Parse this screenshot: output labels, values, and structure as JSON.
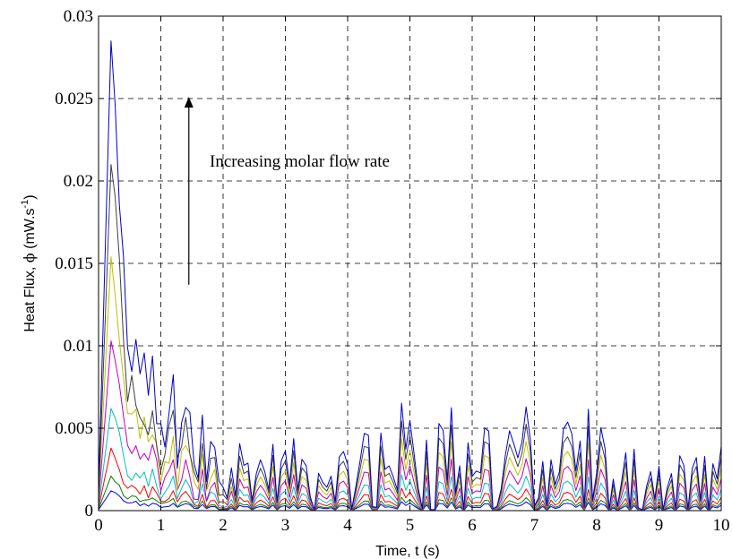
{
  "chart_data": {
    "type": "line",
    "xlabel": "Time, t (s)",
    "ylabel_main": "Heat Flux, ",
    "ylabel_symbol": "ϕ",
    "ylabel_unit": " (mW.s",
    "ylabel_exp": "-1",
    "ylabel_close": ")",
    "xlim": [
      0,
      10
    ],
    "ylim": [
      0,
      0.03
    ],
    "xticks": [
      "0",
      "1",
      "2",
      "3",
      "4",
      "5",
      "6",
      "7",
      "8",
      "9",
      "10"
    ],
    "yticks": [
      "0",
      "0.005",
      "0.01",
      "0.015",
      "0.02",
      "0.025",
      "0.03"
    ],
    "grid": true,
    "annotation": {
      "text": "Increasing molar flow rate",
      "arrow_from": [
        1.45,
        0.0137
      ],
      "arrow_to": [
        1.45,
        0.0251
      ]
    },
    "series": [
      {
        "color": "#0000ff",
        "peak": 0.0012,
        "tail": 0.0001
      },
      {
        "color": "#008000",
        "peak": 0.0021,
        "tail": 0.00015
      },
      {
        "color": "#ff0000",
        "peak": 0.0038,
        "tail": 0.00025
      },
      {
        "color": "#00bfbf",
        "peak": 0.0062,
        "tail": 0.0004
      },
      {
        "color": "#bf00bf",
        "peak": 0.0103,
        "tail": 0.0006
      },
      {
        "color": "#bfbf00",
        "peak": 0.0154,
        "tail": 0.0008
      },
      {
        "color": "#404040",
        "peak": 0.021,
        "tail": 0.001
      },
      {
        "color": "#0000cc",
        "peak": 0.0285,
        "tail": 0.0012
      }
    ]
  }
}
